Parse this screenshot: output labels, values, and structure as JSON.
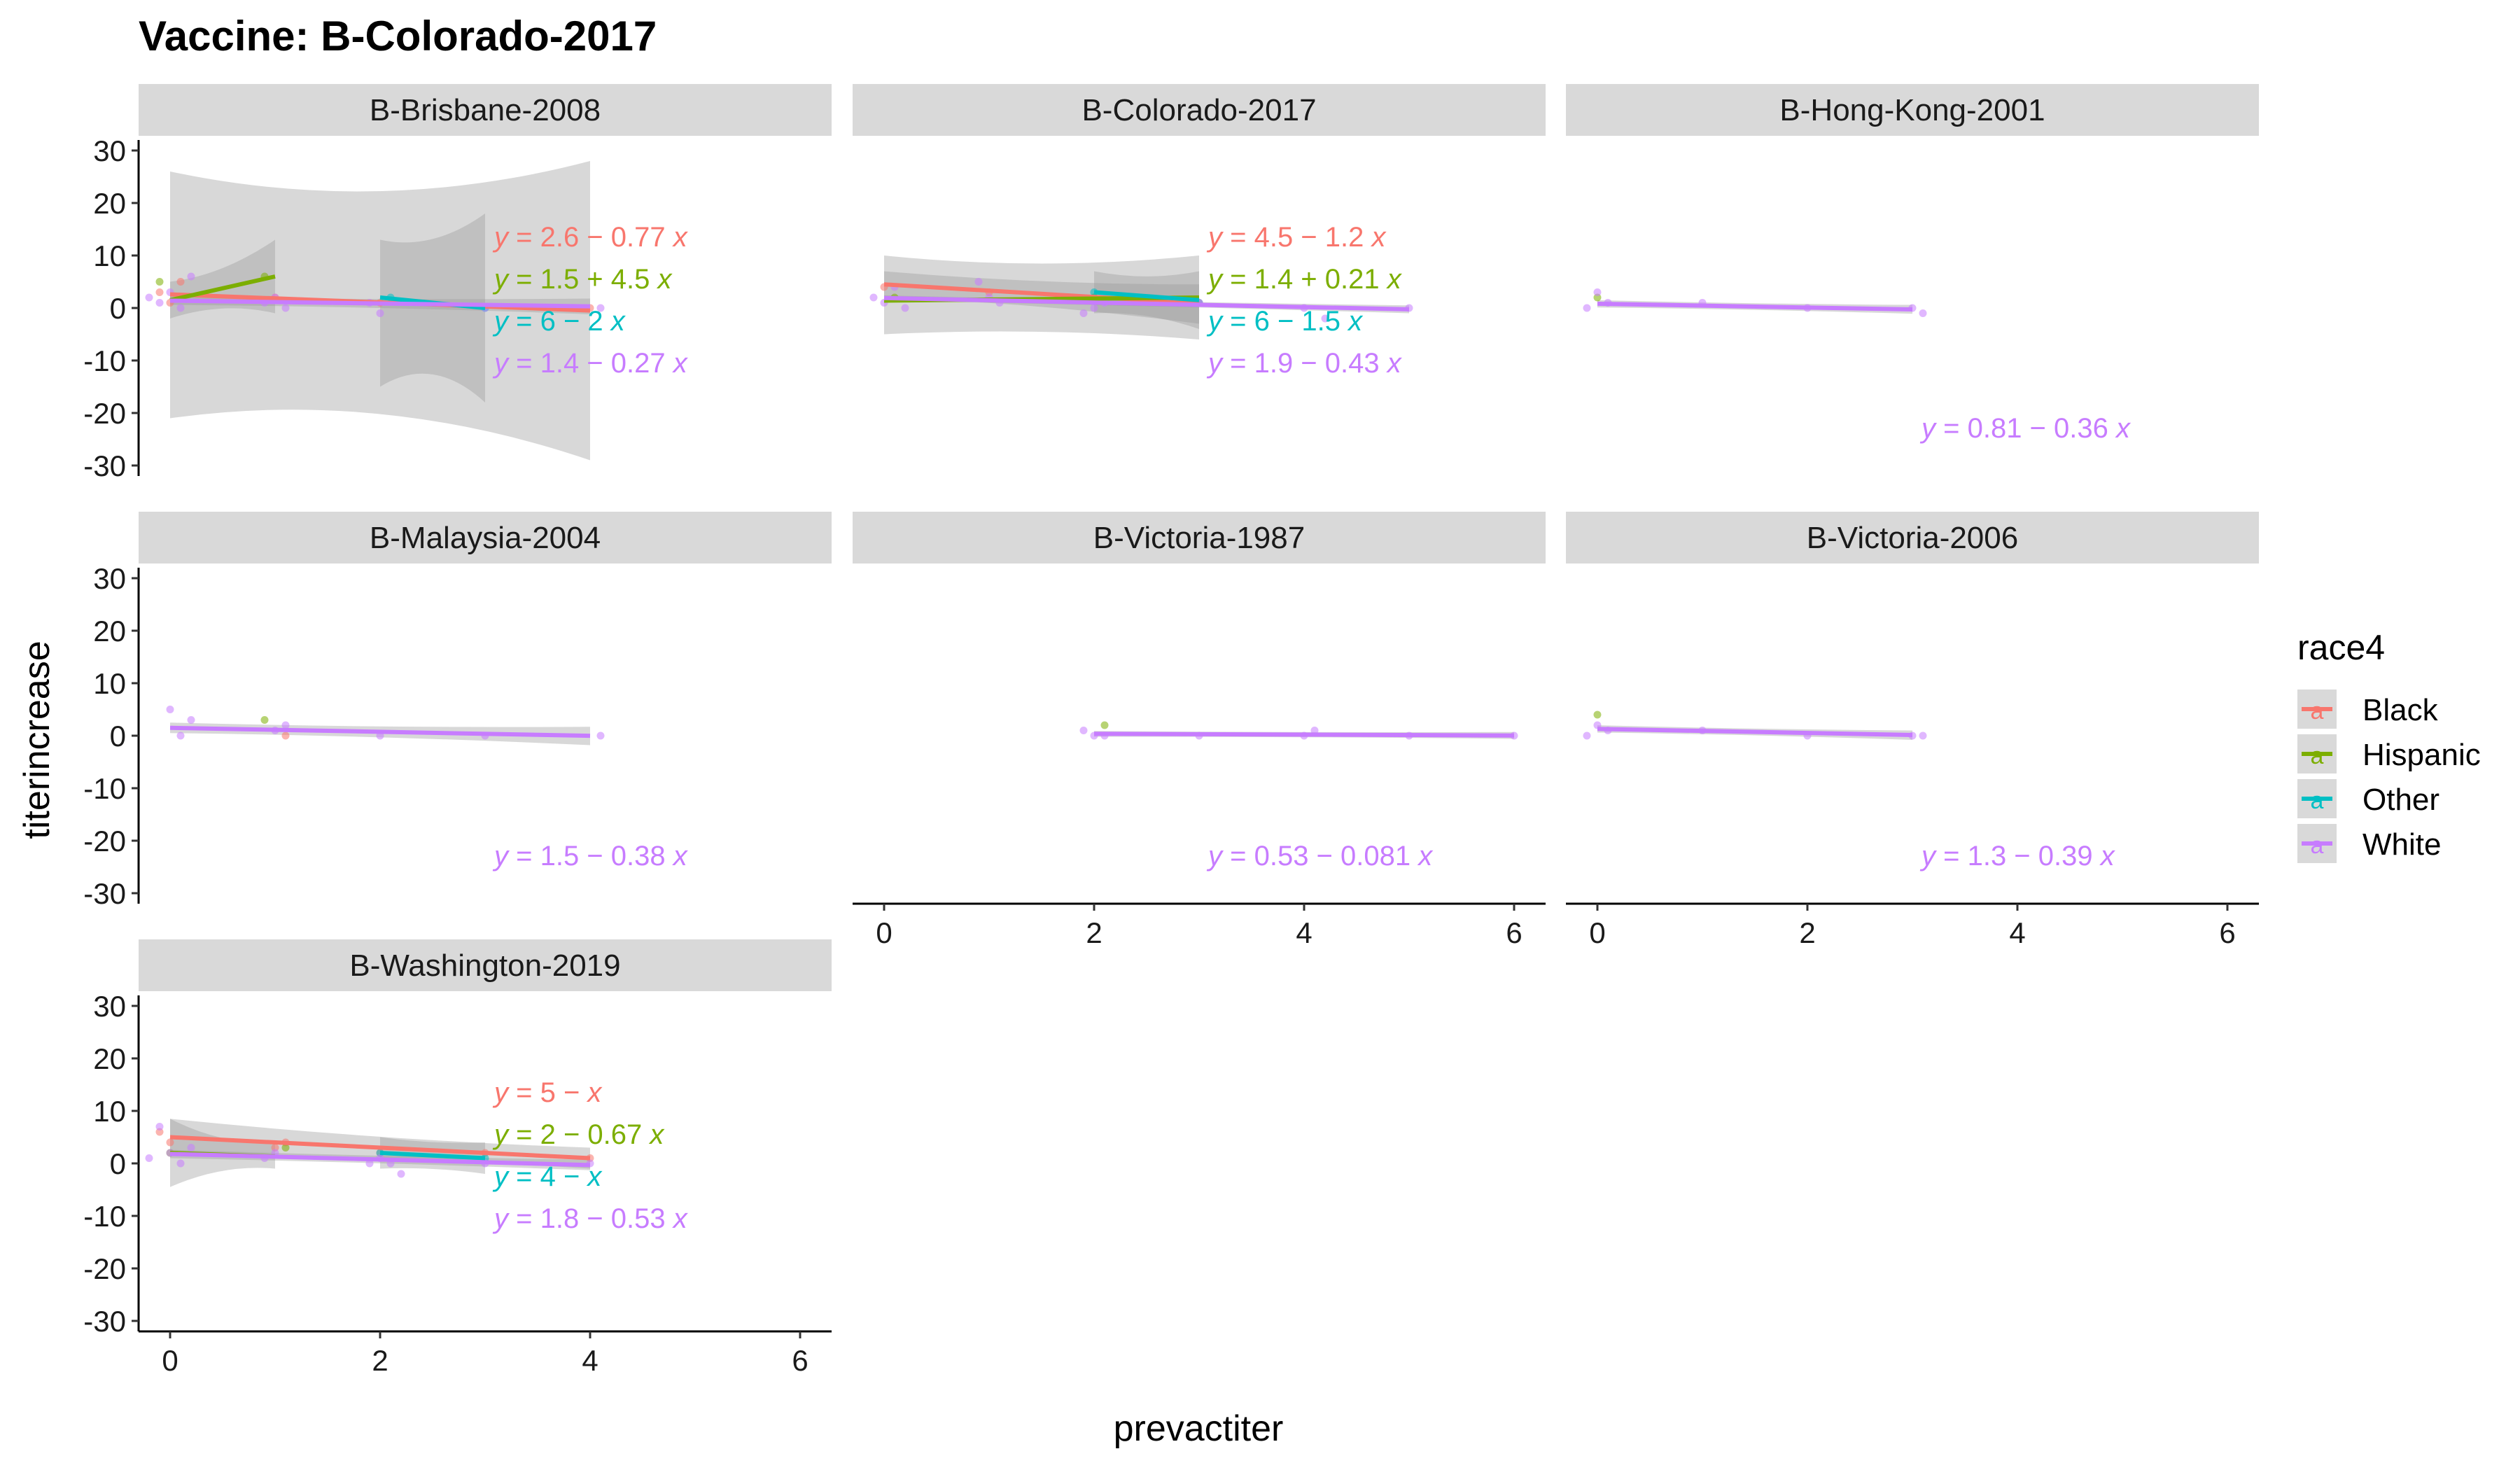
{
  "chart_data": {
    "type": "scatter",
    "title": "Vaccine: B-Colorado-2017",
    "xlabel": "prevactiter",
    "ylabel": "titerincrease",
    "xlim": [
      -0.3,
      6.3
    ],
    "ylim": [
      -32,
      32
    ],
    "x_ticks": [
      "0",
      "2",
      "4",
      "6"
    ],
    "y_ticks": [
      "-30",
      "-20",
      "-10",
      "0",
      "10",
      "20",
      "30"
    ],
    "legend": {
      "title": "race4",
      "placement": "right",
      "entries": [
        {
          "name": "Black",
          "color": "#F8766D"
        },
        {
          "name": "Hispanic",
          "color": "#7CAE00"
        },
        {
          "name": "Other",
          "color": "#00BFC4"
        },
        {
          "name": "White",
          "color": "#C77CFF"
        }
      ]
    },
    "panels": [
      {
        "strip": "B-Brisbane-2008",
        "fits": [
          {
            "series": "Black",
            "x": [
              0,
              4
            ],
            "y": [
              2.6,
              -0.48
            ],
            "ci": [
              [
                -21,
                26
              ],
              [
                -29,
                28
              ]
            ],
            "eq": [
              "y",
              " = 2.6 − 0.77 ",
              "x"
            ]
          },
          {
            "series": "Hispanic",
            "x": [
              0,
              1
            ],
            "y": [
              1.5,
              6.0
            ],
            "ci": [
              [
                -2,
                5
              ],
              [
                -1,
                13
              ]
            ],
            "eq": [
              "y",
              " = 1.5 + 4.5 ",
              "x"
            ]
          },
          {
            "series": "Other",
            "x": [
              2,
              3
            ],
            "y": [
              2.0,
              0.0
            ],
            "ci": [
              [
                -15,
                13
              ],
              [
                -18,
                18
              ]
            ],
            "eq": [
              "y",
              " = 6 − 2 ",
              "x"
            ]
          },
          {
            "series": "White",
            "x": [
              0,
              4
            ],
            "y": [
              1.4,
              0.32
            ],
            "ci": [
              [
                0.6,
                2.2
              ],
              [
                -1.2,
                1.8
              ]
            ],
            "eq": [
              "y",
              " = 1.4 − 0.27 ",
              "x"
            ]
          }
        ],
        "points": [
          {
            "series": "Black",
            "x": [
              -0.1,
              0.0,
              0.1,
              1.0,
              2.0,
              4.0
            ],
            "y": [
              3,
              1,
              5,
              2,
              1,
              0
            ]
          },
          {
            "series": "Hispanic",
            "x": [
              -0.1,
              0.9
            ],
            "y": [
              5,
              6
            ]
          },
          {
            "series": "Other",
            "x": [
              2.1,
              3.0
            ],
            "y": [
              2,
              0
            ]
          },
          {
            "series": "White",
            "x": [
              -0.2,
              -0.1,
              0.0,
              0.1,
              0.2,
              0.9,
              1.0,
              1.1,
              1.9,
              2.0,
              3.0,
              3.9,
              4.1
            ],
            "y": [
              2,
              1,
              3,
              0,
              6,
              1,
              2,
              0,
              1,
              -1,
              0,
              0,
              0
            ]
          }
        ]
      },
      {
        "strip": "B-Colorado-2017",
        "fits": [
          {
            "series": "Black",
            "x": [
              0,
              3
            ],
            "y": [
              4.5,
              0.9
            ],
            "ci": [
              [
                2,
                7
              ],
              [
                -3,
                4.5
              ]
            ],
            "eq": [
              "y",
              " = 4.5 − 1.2 ",
              "x"
            ]
          },
          {
            "series": "Hispanic",
            "x": [
              0,
              3
            ],
            "y": [
              1.4,
              2.0
            ],
            "ci": [
              [
                -5,
                10
              ],
              [
                -6,
                10
              ]
            ],
            "eq": [
              "y",
              " = 1.4 + 0.21 ",
              "x"
            ]
          },
          {
            "series": "Other",
            "x": [
              2,
              3
            ],
            "y": [
              3.0,
              1.5
            ],
            "ci": [
              [
                -1,
                7
              ],
              [
                -4,
                7
              ]
            ],
            "eq": [
              "y",
              " = 6 − 1.5 ",
              "x"
            ]
          },
          {
            "series": "White",
            "x": [
              0,
              5
            ],
            "y": [
              1.9,
              -0.25
            ],
            "ci": [
              [
                1.4,
                2.4
              ],
              [
                -1.0,
                0.5
              ]
            ],
            "eq": [
              "y",
              " = 1.9 − 0.43 ",
              "x"
            ]
          }
        ],
        "points": [
          {
            "series": "Black",
            "x": [
              0.0,
              1.0,
              2.0,
              3.0
            ],
            "y": [
              4,
              3,
              2,
              1
            ]
          },
          {
            "series": "Hispanic",
            "x": [
              0.1,
              2.0
            ],
            "y": [
              2,
              2
            ]
          },
          {
            "series": "Other",
            "x": [
              2.0,
              3.0
            ],
            "y": [
              3,
              1
            ]
          },
          {
            "series": "White",
            "x": [
              -0.1,
              0.0,
              0.1,
              0.2,
              0.9,
              1.0,
              1.1,
              1.9,
              2.0,
              2.1,
              3.0,
              4.0,
              4.2,
              5.0
            ],
            "y": [
              2,
              1,
              4,
              0,
              5,
              2,
              1,
              -1,
              0,
              1,
              1,
              0,
              -2,
              0
            ]
          }
        ]
      },
      {
        "strip": "B-Hong-Kong-2001",
        "fits": [
          {
            "series": "White",
            "x": [
              0,
              3
            ],
            "y": [
              0.81,
              -0.27
            ],
            "ci": [
              [
                0.1,
                1.5
              ],
              [
                -1.1,
                0.6
              ]
            ],
            "eq": [
              "y",
              " = 0.81 − 0.36 ",
              "x"
            ]
          }
        ],
        "points": [
          {
            "series": "Hispanic",
            "x": [
              0.0
            ],
            "y": [
              2
            ]
          },
          {
            "series": "White",
            "x": [
              -0.1,
              0.0,
              0.1,
              1.0,
              2.0,
              3.0,
              3.1
            ],
            "y": [
              0,
              3,
              1,
              1,
              0,
              0,
              -1
            ]
          }
        ]
      },
      {
        "strip": "B-Malaysia-2004",
        "fits": [
          {
            "series": "White",
            "x": [
              0,
              4
            ],
            "y": [
              1.5,
              -0.02
            ],
            "ci": [
              [
                0.5,
                2.5
              ],
              [
                -1.8,
                1.7
              ]
            ],
            "eq": [
              "y",
              " = 1.5 − 0.38 ",
              "x"
            ]
          }
        ],
        "points": [
          {
            "series": "Black",
            "x": [
              1.1
            ],
            "y": [
              0
            ]
          },
          {
            "series": "Hispanic",
            "x": [
              0.9
            ],
            "y": [
              3
            ]
          },
          {
            "series": "White",
            "x": [
              0.0,
              0.1,
              0.2,
              1.0,
              1.1,
              2.0,
              3.0,
              4.1
            ],
            "y": [
              5,
              0,
              3,
              1,
              2,
              0,
              0,
              0
            ]
          }
        ]
      },
      {
        "strip": "B-Victoria-1987",
        "fits": [
          {
            "series": "White",
            "x": [
              2,
              6
            ],
            "y": [
              0.37,
              0.04
            ],
            "ci": [
              [
                -0.2,
                0.9
              ],
              [
                -0.6,
                0.7
              ]
            ],
            "eq": [
              "y",
              " = 0.53 − 0.081 ",
              "x"
            ]
          }
        ],
        "points": [
          {
            "series": "Hispanic",
            "x": [
              2.1
            ],
            "y": [
              2
            ]
          },
          {
            "series": "White",
            "x": [
              1.9,
              2.0,
              2.1,
              3.0,
              4.0,
              4.1,
              5.0,
              6.0
            ],
            "y": [
              1,
              0,
              0,
              0,
              0,
              1,
              0,
              0
            ]
          }
        ]
      },
      {
        "strip": "B-Victoria-2006",
        "fits": [
          {
            "series": "White",
            "x": [
              0,
              3
            ],
            "y": [
              1.3,
              0.13
            ],
            "ci": [
              [
                0.6,
                2.0
              ],
              [
                -0.8,
                1.0
              ]
            ],
            "eq": [
              "y",
              " = 1.3 − 0.39 ",
              "x"
            ]
          }
        ],
        "points": [
          {
            "series": "Hispanic",
            "x": [
              0.0
            ],
            "y": [
              4
            ]
          },
          {
            "series": "White",
            "x": [
              -0.1,
              0.0,
              0.1,
              1.0,
              2.0,
              3.0,
              3.1
            ],
            "y": [
              0,
              2,
              1,
              1,
              0,
              0,
              0
            ]
          }
        ]
      },
      {
        "strip": "B-Washington-2019",
        "fits": [
          {
            "series": "Black",
            "x": [
              0,
              4
            ],
            "y": [
              5.0,
              1.0
            ],
            "ci": [
              [
                1.5,
                8.5
              ],
              [
                -1,
                3
              ]
            ],
            "eq": [
              "y",
              " = 5 − ",
              "x"
            ]
          },
          {
            "series": "Hispanic",
            "x": [
              0,
              1
            ],
            "y": [
              2.0,
              1.3
            ],
            "ci": [
              [
                -4.5,
                8.5
              ],
              [
                -1,
                4
              ]
            ],
            "eq": [
              "y",
              " = 2 − 0.67 ",
              "x"
            ]
          },
          {
            "series": "Other",
            "x": [
              2,
              3
            ],
            "y": [
              2.0,
              1.0
            ],
            "ci": [
              [
                -1,
                5
              ],
              [
                -2,
                4
              ]
            ],
            "eq": [
              "y",
              " = 4 −  ",
              "x"
            ]
          },
          {
            "series": "White",
            "x": [
              0,
              4
            ],
            "y": [
              1.8,
              -0.32
            ],
            "ci": [
              [
                1.0,
                2.6
              ],
              [
                -1.3,
                0.7
              ]
            ],
            "eq": [
              "y",
              " = 1.8 − 0.53 ",
              "x"
            ]
          }
        ],
        "points": [
          {
            "series": "Black",
            "x": [
              -0.1,
              0.0,
              1.0,
              1.1,
              2.0,
              3.0,
              4.0
            ],
            "y": [
              6,
              4,
              3,
              4,
              2,
              2,
              1
            ]
          },
          {
            "series": "Hispanic",
            "x": [
              0.0,
              1.1
            ],
            "y": [
              2,
              3
            ]
          },
          {
            "series": "Other",
            "x": [
              2.0,
              3.0
            ],
            "y": [
              2,
              1
            ]
          },
          {
            "series": "White",
            "x": [
              -0.2,
              -0.1,
              0.0,
              0.1,
              0.2,
              0.9,
              1.0,
              1.9,
              2.0,
              2.1,
              2.2,
              3.0,
              4.0
            ],
            "y": [
              1,
              7,
              2,
              0,
              3,
              1,
              2,
              0,
              1,
              0,
              -2,
              0,
              0
            ]
          }
        ]
      }
    ]
  }
}
